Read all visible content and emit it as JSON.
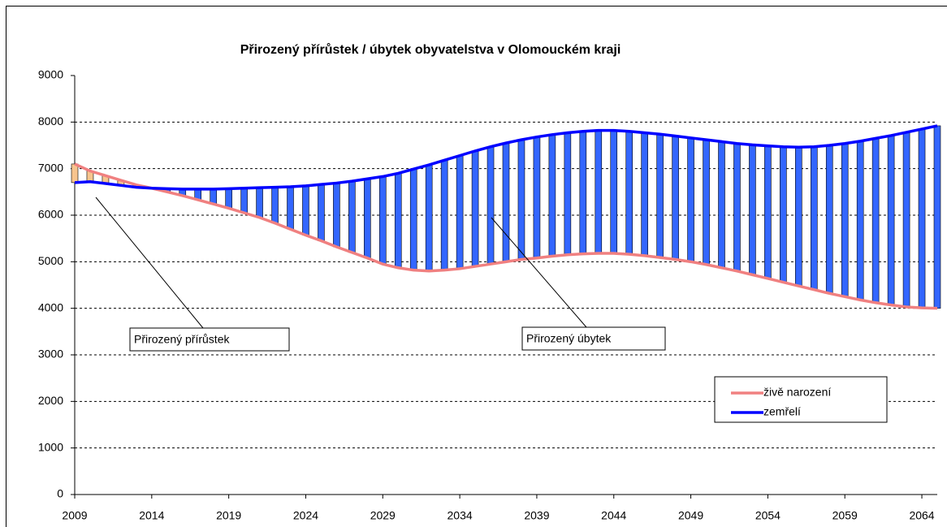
{
  "chart_data": {
    "type": "line",
    "title": "Přirozený přírůstek / úbytek obyvatelstva v Olomouckém kraji",
    "x": [
      2009,
      2010,
      2011,
      2012,
      2013,
      2014,
      2015,
      2016,
      2017,
      2018,
      2019,
      2020,
      2021,
      2022,
      2023,
      2024,
      2025,
      2026,
      2027,
      2028,
      2029,
      2030,
      2031,
      2032,
      2033,
      2034,
      2035,
      2036,
      2037,
      2038,
      2039,
      2040,
      2041,
      2042,
      2043,
      2044,
      2045,
      2046,
      2047,
      2048,
      2049,
      2050,
      2051,
      2052,
      2053,
      2054,
      2055,
      2056,
      2057,
      2058,
      2059,
      2060,
      2061,
      2062,
      2063,
      2064,
      2065
    ],
    "series": [
      {
        "name": "živě narození",
        "color": "#f08080",
        "values": [
          7100,
          6950,
          6850,
          6750,
          6650,
          6580,
          6500,
          6420,
          6330,
          6240,
          6150,
          6050,
          5950,
          5830,
          5700,
          5570,
          5450,
          5320,
          5200,
          5080,
          4950,
          4870,
          4820,
          4800,
          4820,
          4850,
          4900,
          4950,
          5000,
          5050,
          5080,
          5120,
          5150,
          5170,
          5180,
          5180,
          5160,
          5130,
          5090,
          5050,
          5000,
          4940,
          4870,
          4800,
          4720,
          4640,
          4560,
          4480,
          4400,
          4320,
          4250,
          4180,
          4120,
          4070,
          4030,
          4010,
          4000
        ]
      },
      {
        "name": "zemřelí",
        "color": "#0000ff",
        "values": [
          6700,
          6720,
          6680,
          6640,
          6600,
          6580,
          6570,
          6560,
          6560,
          6560,
          6570,
          6580,
          6590,
          6600,
          6610,
          6630,
          6660,
          6690,
          6730,
          6780,
          6830,
          6900,
          6990,
          7080,
          7180,
          7280,
          7380,
          7470,
          7550,
          7620,
          7680,
          7730,
          7770,
          7800,
          7820,
          7820,
          7800,
          7770,
          7740,
          7700,
          7660,
          7620,
          7580,
          7540,
          7510,
          7490,
          7470,
          7460,
          7470,
          7500,
          7540,
          7590,
          7650,
          7710,
          7780,
          7850,
          7920
        ]
      }
    ],
    "up_bar_color": "#f7c48e",
    "down_bar_color": "#3366ff",
    "xlim": [
      2009,
      2065
    ],
    "xticks": [
      2009,
      2014,
      2019,
      2024,
      2029,
      2034,
      2039,
      2044,
      2049,
      2054,
      2059,
      2064
    ],
    "ylim": [
      0,
      9000
    ],
    "yticks": [
      0,
      1000,
      2000,
      3000,
      4000,
      5000,
      6000,
      7000,
      8000,
      9000
    ],
    "grid": true,
    "legend_position": "lower right",
    "annotations": [
      {
        "text": "Přirozený přírůstek"
      },
      {
        "text": "Přirozený úbytek"
      }
    ]
  }
}
